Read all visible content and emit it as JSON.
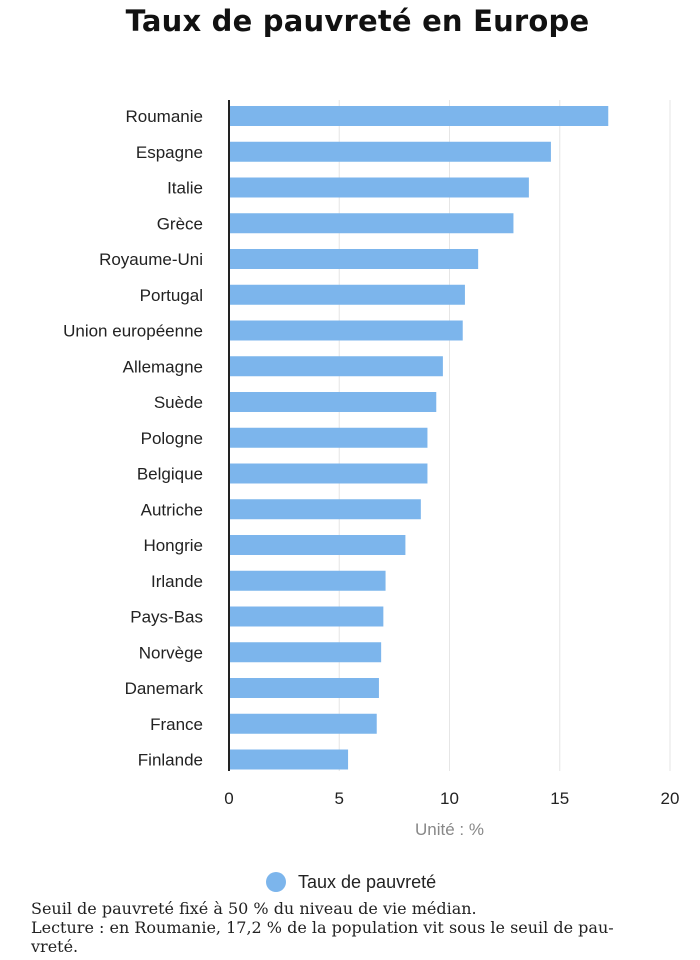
{
  "chart_data": {
    "type": "bar",
    "orientation": "horizontal",
    "title": "Taux de pauvreté en Europe",
    "xlabel": "Unité : %",
    "ylabel": "",
    "categories": [
      "Roumanie",
      "Espagne",
      "Italie",
      "Grèce",
      "Royaume-Uni",
      "Portugal",
      "Union européenne",
      "Allemagne",
      "Suède",
      "Pologne",
      "Belgique",
      "Autriche",
      "Hongrie",
      "Irlande",
      "Pays-Bas",
      "Norvège",
      "Danemark",
      "France",
      "Finlande"
    ],
    "series": [
      {
        "name": "Taux de pauvreté",
        "color": "#7cb5ec",
        "values": [
          17.2,
          14.6,
          13.6,
          12.9,
          11.3,
          10.7,
          10.6,
          9.7,
          9.4,
          9.0,
          9.0,
          8.7,
          8.0,
          7.1,
          7.0,
          6.9,
          6.8,
          6.7,
          5.4
        ]
      }
    ],
    "xlim": [
      0,
      20
    ],
    "xticks": [
      "0",
      "5",
      "10",
      "15",
      "20"
    ],
    "xtick_values": [
      0,
      5,
      10,
      15,
      20
    ],
    "grid": true,
    "legend_position": "bottom-center"
  },
  "notes": [
    "Seuil de pauvreté fixé à 50 % du niveau de vie médian.",
    "Lecture : en Roumanie, 17,2 % de la population vit sous le seuil de pau-",
    "vreté."
  ]
}
